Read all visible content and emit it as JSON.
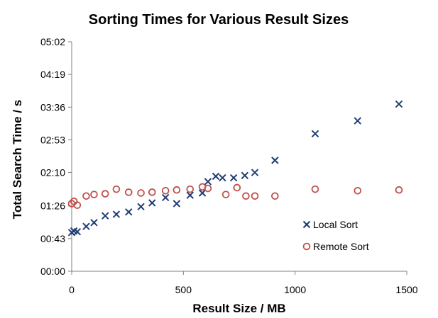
{
  "chart_data": {
    "type": "scatter",
    "title": "Sorting Times for Various Result Sizes",
    "xlabel": "Result Size / MB",
    "ylabel": "Total Search Time / s",
    "xlim": [
      0,
      1500
    ],
    "ylim": [
      0,
      302
    ],
    "x_ticks": [
      0,
      500,
      1000,
      1500
    ],
    "x_tick_labels": [
      "0",
      "500",
      "1000",
      "1500"
    ],
    "y_ticks": [
      0,
      43,
      86,
      130,
      173,
      216,
      259,
      302
    ],
    "y_tick_labels": [
      "00:00",
      "00:43",
      "01:26",
      "02:10",
      "02:53",
      "03:36",
      "04:19",
      "05:02"
    ],
    "grid": false,
    "legend_position": "lower-right",
    "series": [
      {
        "name": "Local Sort",
        "marker": "x",
        "color": "#1f3d73",
        "points": [
          [
            0,
            51
          ],
          [
            10,
            53
          ],
          [
            25,
            52
          ],
          [
            65,
            59
          ],
          [
            100,
            64
          ],
          [
            150,
            73
          ],
          [
            200,
            75
          ],
          [
            255,
            78
          ],
          [
            310,
            85
          ],
          [
            360,
            90
          ],
          [
            420,
            97
          ],
          [
            470,
            89
          ],
          [
            530,
            100
          ],
          [
            585,
            103
          ],
          [
            610,
            118
          ],
          [
            645,
            125
          ],
          [
            675,
            123
          ],
          [
            725,
            123
          ],
          [
            775,
            126
          ],
          [
            820,
            130
          ],
          [
            910,
            146
          ],
          [
            1090,
            181
          ],
          [
            1280,
            198
          ],
          [
            1465,
            220
          ]
        ]
      },
      {
        "name": "Remote Sort",
        "marker": "circle",
        "color": "#c0504d",
        "points": [
          [
            0,
            89
          ],
          [
            10,
            92
          ],
          [
            25,
            87
          ],
          [
            65,
            99
          ],
          [
            100,
            101
          ],
          [
            150,
            102
          ],
          [
            200,
            108
          ],
          [
            255,
            104
          ],
          [
            310,
            103
          ],
          [
            360,
            104
          ],
          [
            420,
            106
          ],
          [
            470,
            107
          ],
          [
            530,
            108
          ],
          [
            585,
            111
          ],
          [
            610,
            109
          ],
          [
            690,
            101
          ],
          [
            740,
            110
          ],
          [
            780,
            99
          ],
          [
            820,
            99
          ],
          [
            910,
            99
          ],
          [
            1090,
            108
          ],
          [
            1280,
            106
          ],
          [
            1465,
            107
          ]
        ]
      }
    ]
  }
}
